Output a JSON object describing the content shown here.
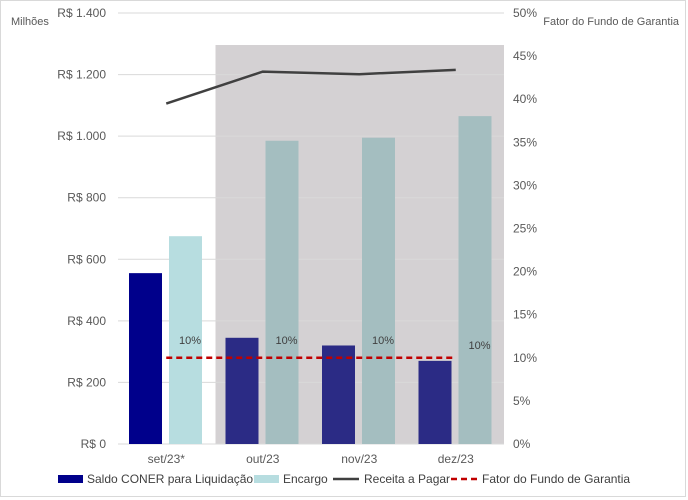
{
  "chart_data": {
    "type": "bar",
    "categories": [
      "set/23*",
      "out/23",
      "nov/23",
      "dez/23"
    ],
    "y_left": {
      "label": "Milhões",
      "ylim": [
        0,
        1400
      ],
      "ticks": [
        0,
        200,
        400,
        600,
        800,
        1000,
        1200,
        1400
      ],
      "tick_labels": [
        "R$ 0",
        "R$ 200",
        "R$ 400",
        "R$ 600",
        "R$ 800",
        "R$ 1.000",
        "R$ 1.200",
        "R$ 1.400"
      ]
    },
    "y_right": {
      "label": "Fator do Fundo de Garantia",
      "ylim": [
        0,
        0.5
      ],
      "ticks": [
        0,
        0.05,
        0.1,
        0.15,
        0.2,
        0.25,
        0.3,
        0.35,
        0.4,
        0.45,
        0.5
      ],
      "tick_labels": [
        "0%",
        "5%",
        "10%",
        "15%",
        "20%",
        "25%",
        "30%",
        "35%",
        "40%",
        "45%",
        "50%"
      ]
    },
    "highlight_categories": [
      "out/23",
      "nov/23",
      "dez/23"
    ],
    "series": [
      {
        "name": "Saldo CONER para Liquidação",
        "type": "bar",
        "axis": "left",
        "color": "#00008b",
        "highlight_color": "#2b2b85",
        "values": [
          555,
          345,
          320,
          270
        ]
      },
      {
        "name": "Encargo",
        "type": "bar",
        "axis": "left",
        "color": "#b7dde0",
        "highlight_color": "#a4bec0",
        "values": [
          675,
          985,
          995,
          1065
        ]
      },
      {
        "name": "Receita a Pagar",
        "type": "line",
        "axis": "right",
        "color": "#404040",
        "values": [
          0.395,
          0.432,
          0.429,
          0.434
        ]
      },
      {
        "name": "Fator do Fundo de Garantia",
        "type": "line",
        "dashed": true,
        "axis": "right",
        "color": "#c00000",
        "values": [
          0.1,
          0.1,
          0.1,
          0.1
        ],
        "data_labels": [
          "10%",
          "10%",
          "10%",
          "10%"
        ]
      }
    ],
    "grid": true,
    "legend_position": "bottom",
    "shading_color": "#d4d1d3"
  }
}
